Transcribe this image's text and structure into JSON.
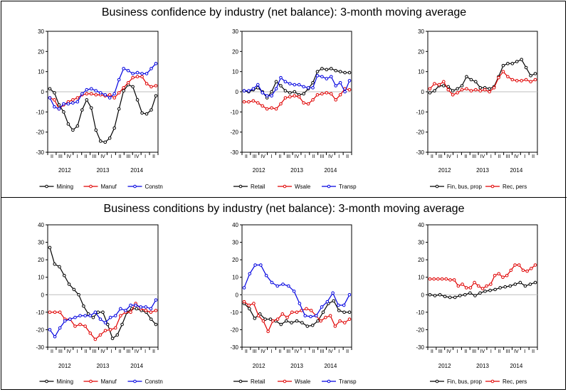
{
  "sections": [
    {
      "title": "Business confidence by industry (net balance): 3-month moving average"
    },
    {
      "title": "Business conditions by industry (net balance): 3-month moving average"
    }
  ],
  "chart_data": [
    {
      "type": "line",
      "section": 0,
      "panel": "left",
      "ylim": [
        -30,
        30
      ],
      "yticks": [
        30,
        20,
        10,
        0,
        -10,
        -20,
        -30
      ],
      "quarter_labels": [
        "II",
        "III",
        "IV",
        "I",
        "II",
        "III",
        "IV",
        "I",
        "II",
        "III",
        "IV",
        "I",
        "II"
      ],
      "year_labels": [
        {
          "label": "2012",
          "at": 2
        },
        {
          "label": "2013",
          "at": 6.5
        },
        {
          "label": "2014",
          "at": 10.5
        }
      ],
      "series": [
        {
          "name": "Mining",
          "color": "#000000",
          "values": [
            1.5,
            -0.5,
            -6.5,
            -10,
            -16,
            -19,
            -17,
            -9,
            -4,
            -8,
            -19,
            -24.5,
            -25,
            -23,
            -18,
            -8.5,
            0.5,
            3.5,
            2.5,
            -4,
            -10.5,
            -11,
            -9,
            -2
          ]
        },
        {
          "name": "Manuf",
          "color": "#e00000",
          "values": [
            -3,
            -4,
            -8.5,
            -6.5,
            -5,
            -4,
            -3,
            -1.5,
            -1,
            -1,
            -1.5,
            -1.5,
            -2,
            -1.5,
            -3,
            -0.5,
            2,
            4.5,
            7,
            7.5,
            7.5,
            4,
            2.5,
            3
          ]
        },
        {
          "name": "Constn",
          "color": "#0000e0",
          "values": [
            -3,
            -7.5,
            -8.5,
            -6,
            -6,
            -5.5,
            -5,
            -1,
            1,
            1.5,
            0.5,
            -0.5,
            -1.5,
            -3,
            -1,
            6,
            11.5,
            10.5,
            9,
            9.5,
            9,
            9,
            11.5,
            14
          ]
        }
      ]
    },
    {
      "type": "line",
      "section": 0,
      "panel": "middle",
      "ylim": [
        -30,
        30
      ],
      "yticks": [
        30,
        20,
        10,
        0,
        -10,
        -20,
        -30
      ],
      "quarter_labels": [
        "II",
        "III",
        "IV",
        "I",
        "II",
        "III",
        "IV",
        "I",
        "II",
        "III",
        "IV",
        "I",
        "II"
      ],
      "year_labels": [
        {
          "label": "2012",
          "at": 2
        },
        {
          "label": "2013",
          "at": 6.5
        },
        {
          "label": "2014",
          "at": 10.5
        }
      ],
      "series": [
        {
          "name": "Retail",
          "color": "#000000",
          "values": [
            0.5,
            0,
            1,
            2,
            0,
            -3,
            0,
            5,
            3,
            0.5,
            -0.5,
            0,
            -1.5,
            -1,
            1.5,
            4.5,
            10,
            11.5,
            11,
            11.5,
            10.5,
            10,
            9.5,
            9.5
          ]
        },
        {
          "name": "Wsale",
          "color": "#e00000",
          "values": [
            -5,
            -5,
            -4.5,
            -5.5,
            -7,
            -8.5,
            -8,
            -8.5,
            -6,
            -3,
            -2.5,
            -2,
            -2.5,
            -5.5,
            -6,
            -4,
            -1.5,
            -1,
            -0.5,
            -1,
            -4,
            -1.5,
            1.5,
            1
          ]
        },
        {
          "name": "Transp",
          "color": "#0000e0",
          "values": [
            0.5,
            0.5,
            1.5,
            3.5,
            -0.5,
            -2,
            -2,
            1.5,
            7,
            5,
            4,
            3.5,
            3.5,
            2.5,
            2,
            2,
            8,
            7.5,
            6.5,
            7.5,
            3,
            4.5,
            0,
            5.5
          ]
        }
      ]
    },
    {
      "type": "line",
      "section": 0,
      "panel": "right",
      "ylim": [
        -30,
        30
      ],
      "yticks": [
        30,
        20,
        10,
        0,
        -10,
        -20,
        -30
      ],
      "quarter_labels": [
        "II",
        "III",
        "IV",
        "I",
        "II",
        "III",
        "IV",
        "I",
        "II",
        "III",
        "IV",
        "I",
        "II"
      ],
      "year_labels": [
        {
          "label": "2012",
          "at": 2
        },
        {
          "label": "2013",
          "at": 6.5
        },
        {
          "label": "2014",
          "at": 10.5
        }
      ],
      "series": [
        {
          "name": "Fin, bus, prop",
          "color": "#000000",
          "values": [
            -0.5,
            0.5,
            3,
            3,
            2.5,
            0.5,
            1.5,
            3,
            7.5,
            6,
            5,
            2,
            2,
            1.5,
            2.5,
            7.5,
            13,
            14,
            14,
            15,
            16,
            12,
            8,
            9
          ]
        },
        {
          "name": "Rec, pers",
          "color": "#e00000",
          "values": [
            1.5,
            4,
            3.5,
            5,
            1,
            -1.5,
            -0.5,
            1,
            1.5,
            0.5,
            1,
            0.5,
            1,
            0,
            2,
            7,
            10,
            7.5,
            6,
            5.5,
            5.5,
            6,
            5,
            6
          ]
        }
      ]
    },
    {
      "type": "line",
      "section": 1,
      "panel": "left",
      "ylim": [
        -30,
        40
      ],
      "yticks": [
        40,
        30,
        20,
        10,
        0,
        -10,
        -20,
        -30
      ],
      "quarter_labels": [
        "II",
        "III",
        "IV",
        "I",
        "II",
        "III",
        "IV",
        "I",
        "II",
        "III",
        "IV",
        "I",
        "II"
      ],
      "year_labels": [
        {
          "label": "2012",
          "at": 2
        },
        {
          "label": "2013",
          "at": 6.5
        },
        {
          "label": "2014",
          "at": 10.5
        }
      ],
      "series": [
        {
          "name": "Mining",
          "color": "#000000",
          "values": [
            27,
            17.5,
            16,
            11,
            6,
            3,
            0,
            -6.5,
            -11,
            -13,
            -10,
            -10,
            -17,
            -25,
            -23,
            -17,
            -10,
            -8,
            -8,
            -9,
            -10,
            -14,
            -17
          ]
        },
        {
          "name": "Manuf",
          "color": "#e00000",
          "values": [
            -10,
            -10,
            -10,
            -14,
            -14,
            -18,
            -17,
            -18,
            -22,
            -25.5,
            -23,
            -20.5,
            -20,
            -19,
            -12,
            -10,
            -10,
            -5,
            -8,
            -9,
            -10,
            -9
          ]
        },
        {
          "name": "Constn",
          "color": "#0000e0",
          "values": [
            -20,
            -24,
            -19,
            -15,
            -14,
            -13,
            -12,
            -12,
            -12,
            -10,
            -14,
            -16,
            -13,
            -12,
            -8,
            -9,
            -6,
            -6,
            -7,
            -7,
            -8,
            -3
          ]
        }
      ]
    },
    {
      "type": "line",
      "section": 1,
      "panel": "middle",
      "ylim": [
        -30,
        40
      ],
      "yticks": [
        40,
        30,
        20,
        10,
        0,
        -10,
        -20,
        -30
      ],
      "quarter_labels": [
        "II",
        "III",
        "IV",
        "I",
        "II",
        "III",
        "IV",
        "I",
        "II",
        "III",
        "IV",
        "I",
        "II"
      ],
      "year_labels": [
        {
          "label": "2012",
          "at": 2
        },
        {
          "label": "2013",
          "at": 6.5
        },
        {
          "label": "2014",
          "at": 10.5
        }
      ],
      "series": [
        {
          "name": "Retail",
          "color": "#000000",
          "values": [
            -5,
            -8,
            -13.5,
            -11,
            -14,
            -14,
            -15,
            -17,
            -15,
            -16,
            -15,
            -16,
            -18,
            -17.5,
            -15,
            -10,
            -5,
            -3.5,
            -9,
            -10,
            -10
          ]
        },
        {
          "name": "Wsale",
          "color": "#e00000",
          "values": [
            -4,
            -6,
            -5,
            -12,
            -15,
            -21,
            -15,
            -14,
            -11,
            -13,
            -10,
            -10,
            -9,
            -8,
            -9,
            -12,
            -15,
            -13,
            -12,
            -18,
            -15,
            -16,
            -14
          ]
        },
        {
          "name": "Transp",
          "color": "#0000e0",
          "values": [
            4,
            12,
            17,
            17,
            11,
            7,
            5,
            6,
            5,
            2,
            -5,
            -12,
            -12.5,
            -12,
            -7,
            -4,
            1,
            -6,
            -6,
            0
          ]
        }
      ]
    },
    {
      "type": "line",
      "section": 1,
      "panel": "right",
      "ylim": [
        -30,
        40
      ],
      "yticks": [
        40,
        30,
        20,
        10,
        0,
        -10,
        -20,
        -30
      ],
      "quarter_labels": [
        "II",
        "III",
        "IV",
        "I",
        "II",
        "III",
        "IV",
        "I",
        "II",
        "III",
        "IV",
        "I",
        "II"
      ],
      "year_labels": [
        {
          "label": "2012",
          "at": 2
        },
        {
          "label": "2013",
          "at": 6.5
        },
        {
          "label": "2014",
          "at": 10.5
        }
      ],
      "series": [
        {
          "name": "Fin, bus, prop",
          "color": "#000000",
          "values": [
            0,
            -0.5,
            0,
            -1,
            -1.5,
            -1.5,
            -0.5,
            0,
            1,
            -0.5,
            1,
            2,
            2.5,
            3,
            4,
            4.5,
            5,
            6,
            7,
            5,
            6,
            7
          ]
        },
        {
          "name": "Rec, pers",
          "color": "#e00000",
          "values": [
            9,
            9,
            9,
            9,
            9,
            8.5,
            8.5,
            5,
            6,
            4,
            4,
            7,
            5,
            3.5,
            5,
            6,
            11,
            12,
            10,
            11,
            14,
            17,
            17,
            14,
            13.5,
            15,
            17
          ]
        }
      ]
    }
  ]
}
